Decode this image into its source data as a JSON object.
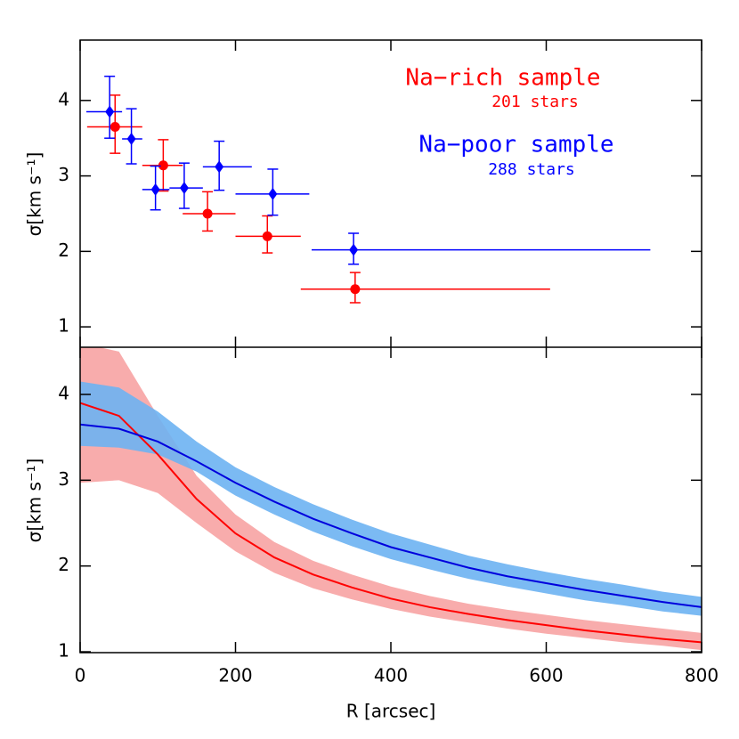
{
  "chart_data": [
    {
      "type": "errorbar",
      "ylabel": "σ[km s⁻¹]",
      "xlim": [
        0,
        800
      ],
      "ylim": [
        0.73,
        4.8
      ],
      "yticks": [
        1,
        2,
        3,
        4
      ],
      "series": [
        {
          "name": "Na−rich sample",
          "count_label": "201 stars",
          "color": "#ff0000",
          "marker": "circle",
          "x": [
            45,
            107,
            164,
            241,
            354
          ],
          "x_low": [
            9,
            80,
            132,
            200,
            284
          ],
          "x_high": [
            80,
            132,
            200,
            284,
            605
          ],
          "values": [
            3.65,
            3.14,
            2.5,
            2.2,
            1.5
          ],
          "y_low": [
            3.3,
            2.8,
            2.27,
            1.98,
            1.32
          ],
          "y_high": [
            4.07,
            3.48,
            2.79,
            2.47,
            1.72
          ]
        },
        {
          "name": "Na−poor sample",
          "count_label": "288 stars",
          "color": "#0000ff",
          "marker": "diamond",
          "x": [
            38,
            66,
            97,
            134,
            179,
            248,
            352
          ],
          "x_low": [
            8,
            54,
            80,
            115,
            158,
            200,
            298
          ],
          "x_high": [
            54,
            80,
            115,
            158,
            221,
            295,
            734
          ],
          "values": [
            3.85,
            3.49,
            2.82,
            2.84,
            3.12,
            2.76,
            2.02
          ],
          "y_low": [
            3.5,
            3.16,
            2.55,
            2.57,
            2.81,
            2.48,
            1.83
          ],
          "y_high": [
            4.32,
            3.89,
            3.13,
            3.17,
            3.46,
            3.09,
            2.24
          ]
        }
      ]
    },
    {
      "type": "band",
      "xlabel": "R [arcsec]",
      "ylabel": "σ[km s⁻¹]",
      "xlim": [
        0,
        800
      ],
      "xticks": [
        0,
        200,
        400,
        600,
        800
      ],
      "ylim": [
        0.99,
        4.55
      ],
      "yticks": [
        1,
        2,
        3,
        4
      ],
      "x": [
        0,
        50,
        100,
        150,
        200,
        250,
        300,
        350,
        400,
        450,
        500,
        550,
        600,
        650,
        700,
        750,
        800
      ],
      "series": [
        {
          "color": "#ff0000",
          "band_color": "#f7a3a3",
          "values": [
            3.9,
            3.75,
            3.3,
            2.78,
            2.38,
            2.1,
            1.9,
            1.75,
            1.62,
            1.52,
            1.44,
            1.37,
            1.31,
            1.25,
            1.2,
            1.15,
            1.11
          ],
          "low": [
            2.97,
            3.0,
            2.85,
            2.5,
            2.17,
            1.92,
            1.74,
            1.61,
            1.5,
            1.41,
            1.34,
            1.27,
            1.21,
            1.16,
            1.11,
            1.07,
            1.02
          ],
          "high": [
            4.6,
            4.5,
            3.75,
            3.05,
            2.6,
            2.28,
            2.06,
            1.9,
            1.76,
            1.65,
            1.56,
            1.49,
            1.43,
            1.37,
            1.32,
            1.27,
            1.22
          ]
        },
        {
          "color": "#0000dd",
          "band_color": "#6db2f2",
          "values": [
            3.65,
            3.6,
            3.45,
            3.22,
            2.97,
            2.75,
            2.55,
            2.38,
            2.22,
            2.1,
            1.98,
            1.88,
            1.8,
            1.72,
            1.65,
            1.58,
            1.52
          ],
          "low": [
            3.4,
            3.38,
            3.3,
            3.1,
            2.82,
            2.6,
            2.4,
            2.23,
            2.08,
            1.96,
            1.85,
            1.76,
            1.68,
            1.6,
            1.54,
            1.47,
            1.42
          ],
          "high": [
            4.15,
            4.08,
            3.8,
            3.45,
            3.15,
            2.92,
            2.72,
            2.54,
            2.38,
            2.25,
            2.12,
            2.02,
            1.93,
            1.85,
            1.78,
            1.7,
            1.64
          ]
        }
      ]
    }
  ]
}
